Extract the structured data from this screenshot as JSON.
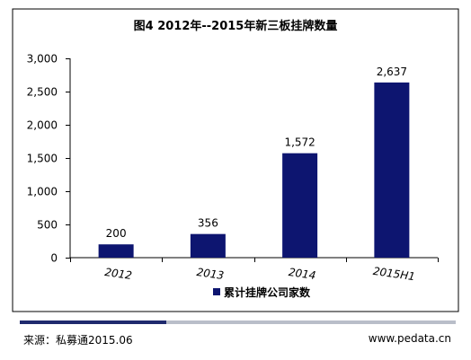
{
  "chart_data": {
    "type": "bar",
    "title": "图4 2012年--2015年新三板挂牌数量",
    "categories": [
      "2012",
      "2013",
      "2014",
      "2015H1"
    ],
    "series": [
      {
        "name": "累计挂牌公司家数",
        "values": [
          200,
          356,
          1572,
          2637
        ],
        "labels": [
          "200",
          "356",
          "1,572",
          "2,637"
        ]
      }
    ],
    "ylim": [
      0,
      3000
    ],
    "yticks": [
      0,
      500,
      1000,
      1500,
      2000,
      2500,
      3000
    ],
    "ytick_labels": [
      "0",
      "500",
      "1,000",
      "1,500",
      "2,000",
      "2,500",
      "3,000"
    ],
    "xlabel": "",
    "ylabel": "",
    "grid": false,
    "legend": "bottom-center",
    "bar_color": "#0d1570"
  },
  "footer": {
    "source": "来源：私募通2015.06",
    "website": "www.pedata.cn"
  }
}
